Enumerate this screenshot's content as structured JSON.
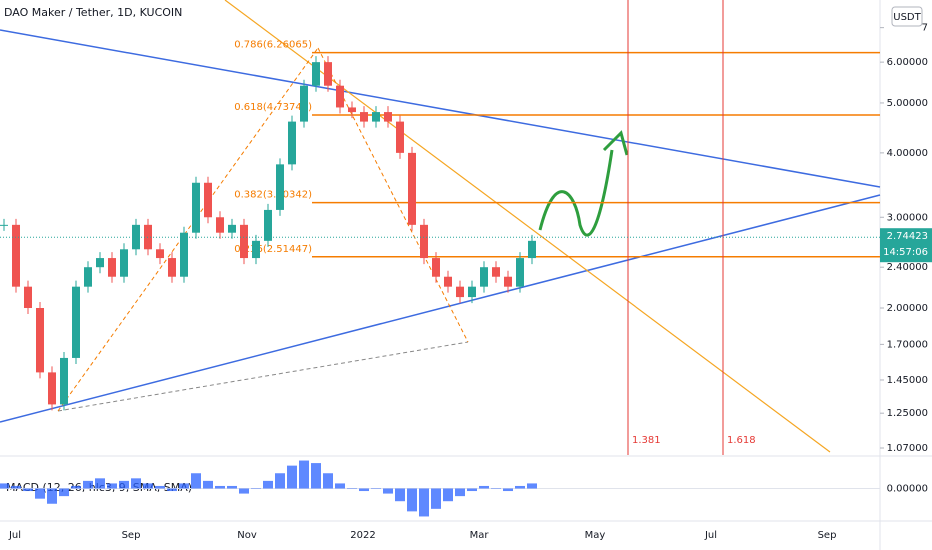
{
  "chart_data": {
    "type": "candlestick",
    "title": "DAO Maker / Tether, 1D, KUCOIN",
    "currency": "USDT",
    "log_scale": true,
    "ylim": [
      1.037,
      7.92
    ],
    "yticks": [
      {
        "value": 7,
        "label": "7"
      },
      {
        "value": 6,
        "label": "6.00000"
      },
      {
        "value": 5,
        "label": "5.00000"
      },
      {
        "value": 4,
        "label": "4.00000"
      },
      {
        "value": 3,
        "label": "3.00000"
      },
      {
        "value": 2.4,
        "label": "2.40000"
      },
      {
        "value": 2,
        "label": "2.00000"
      },
      {
        "value": 1.7,
        "label": "1.70000"
      },
      {
        "value": 1.45,
        "label": "1.45000"
      },
      {
        "value": 1.25,
        "label": "1.25000"
      },
      {
        "value": 1.07,
        "label": "1.07000"
      }
    ],
    "x_labels": [
      "Jul",
      "Sep",
      "Nov",
      "2022",
      "Mar",
      "May",
      "Jul",
      "Sep"
    ],
    "values": [
      2.9,
      2.2,
      2.0,
      1.5,
      1.3,
      1.6,
      2.2,
      2.4,
      2.5,
      2.3,
      2.6,
      2.9,
      2.6,
      2.5,
      2.3,
      2.8,
      3.5,
      3.0,
      2.8,
      2.9,
      2.5,
      2.7,
      3.1,
      3.8,
      4.6,
      5.4,
      6.0,
      5.4,
      4.9,
      4.8,
      4.6,
      4.8,
      4.6,
      4.0,
      2.9,
      2.5,
      2.3,
      2.2,
      2.1,
      2.2,
      2.4,
      2.3,
      2.2,
      2.5,
      2.7
    ],
    "up_color": "#26a69a",
    "down_color": "#ef5350",
    "fib_color": "#f57c00",
    "fib_levels": [
      {
        "label": "0.786(6.26065)",
        "value": 6.26065
      },
      {
        "label": "0.618(4.73744)",
        "value": 4.73744
      },
      {
        "label": "0.382(3.20342)",
        "value": 3.20342
      },
      {
        "label": "0.236(2.51447)",
        "value": 2.51447
      }
    ],
    "last_price": 2.74423,
    "countdown": "14:57:06",
    "projection_labels": [
      1.381,
      1.618
    ],
    "indicator": {
      "title": "MACD (12, 26, hlc3, 9, SMA, SMA)",
      "color": "#2962ff",
      "ylim": [
        -1.2,
        1.2
      ],
      "yticks": [
        {
          "value": 0,
          "label": "0.00000"
        }
      ],
      "values": [
        0.2,
        0.1,
        -0.1,
        -0.4,
        -0.6,
        -0.3,
        0.1,
        0.3,
        0.4,
        0.2,
        0.3,
        0.4,
        0.2,
        0.1,
        -0.1,
        0.2,
        0.6,
        0.3,
        0.1,
        0.1,
        -0.2,
        0,
        0.3,
        0.6,
        0.9,
        1.1,
        1.0,
        0.6,
        0.2,
        0,
        -0.1,
        0,
        -0.2,
        -0.5,
        -0.9,
        -1.1,
        -0.8,
        -0.5,
        -0.3,
        -0.1,
        0.1,
        0,
        -0.1,
        0.1,
        0.2
      ]
    }
  }
}
